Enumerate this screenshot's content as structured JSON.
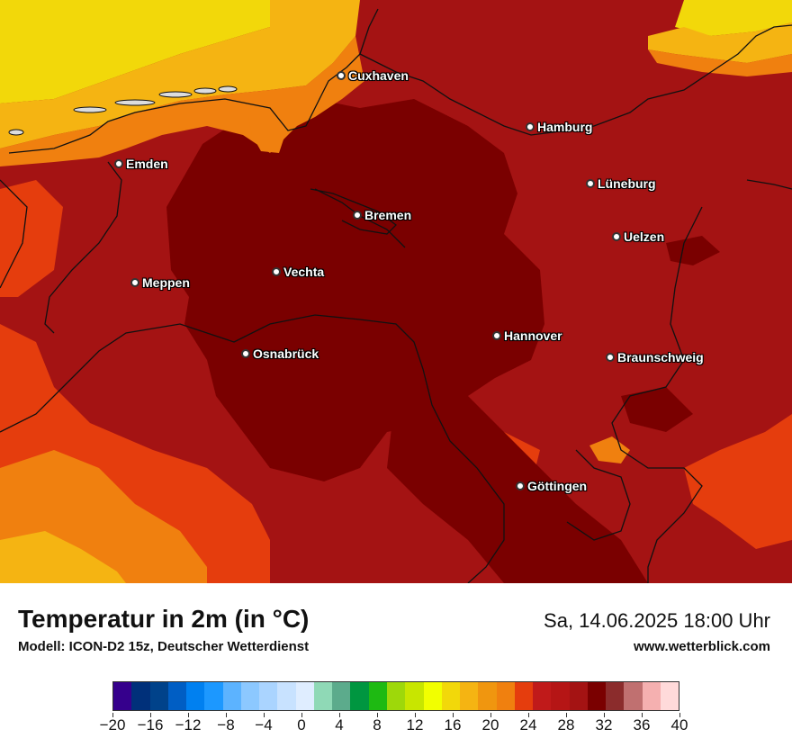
{
  "map": {
    "cities": [
      {
        "id": "cuxhaven",
        "name": "Cuxhaven"
      },
      {
        "id": "hamburg",
        "name": "Hamburg"
      },
      {
        "id": "emden",
        "name": "Emden"
      },
      {
        "id": "lueneburg",
        "name": "Lüneburg"
      },
      {
        "id": "bremen",
        "name": "Bremen"
      },
      {
        "id": "uelzen",
        "name": "Uelzen"
      },
      {
        "id": "meppen",
        "name": "Meppen"
      },
      {
        "id": "vechta",
        "name": "Vechta"
      },
      {
        "id": "hannover",
        "name": "Hannover"
      },
      {
        "id": "osnabrueck",
        "name": "Osnabrück"
      },
      {
        "id": "braunschweig",
        "name": "Braunschweig"
      },
      {
        "id": "goettingen",
        "name": "Göttingen"
      }
    ],
    "colors": {
      "hottest": "#7a0000",
      "hot": "#a41313",
      "warm": "#c01a1a",
      "orange_red": "#e53d0d",
      "orange": "#f0800f",
      "light_orange": "#f5b412",
      "yellow": "#f2d80a"
    }
  },
  "footer": {
    "title": "Temperatur in 2m (in °C)",
    "subtitle": "Modell: ICON-D2 15z, Deutscher Wetterdienst",
    "datetime": "Sa, 14.06.2025 18:00 Uhr",
    "website": "www.wetterblick.com"
  },
  "legend": {
    "min": -20,
    "max": 40,
    "tick_labels": [
      "−20",
      "−16",
      "−12",
      "−8",
      "−4",
      "0",
      "4",
      "8",
      "12",
      "16",
      "20",
      "24",
      "28",
      "32",
      "36",
      "40"
    ],
    "colors": [
      "#35008c",
      "#00307a",
      "#00428a",
      "#005ec4",
      "#0080f0",
      "#1c98ff",
      "#5cb3ff",
      "#8cc8ff",
      "#aad4ff",
      "#c8e2ff",
      "#dfedff",
      "#8fd9b6",
      "#5cab8c",
      "#009640",
      "#1eba12",
      "#9ed80a",
      "#c8e600",
      "#f2ff00",
      "#f2d80a",
      "#f5b412",
      "#f0960f",
      "#f0800f",
      "#e53d0d",
      "#c01a1a",
      "#b51515",
      "#a41313",
      "#7a0000",
      "#8b2c2c",
      "#c07070",
      "#f5b0b0",
      "#ffdada"
    ]
  }
}
